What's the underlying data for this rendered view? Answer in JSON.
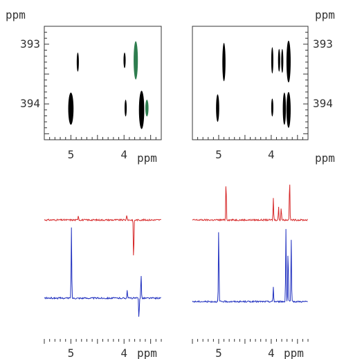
{
  "chart_data": [
    {
      "type": "contour-2d",
      "panel": "top-left",
      "y_unit": "ppm",
      "x_unit": "ppm",
      "x_ticks": [
        {
          "value": 5,
          "label": "5"
        },
        {
          "value": 4,
          "label": "4"
        }
      ],
      "y_ticks": [
        {
          "value": 393,
          "label": "393"
        },
        {
          "value": 394,
          "label": "394"
        }
      ],
      "x_range_ppm": [
        5.5,
        3.3
      ],
      "y_range_ppm": [
        392.7,
        394.6
      ],
      "peaks": [
        {
          "x": 5.0,
          "y": 394.08,
          "half_width_x": 0.05,
          "half_height_y": 0.27,
          "color": "#000000"
        },
        {
          "x": 4.87,
          "y": 393.3,
          "half_width_x": 0.02,
          "half_height_y": 0.16,
          "color": "#000000"
        },
        {
          "x": 3.99,
          "y": 393.27,
          "half_width_x": 0.02,
          "half_height_y": 0.13,
          "color": "#000000"
        },
        {
          "x": 3.97,
          "y": 394.07,
          "half_width_x": 0.02,
          "half_height_y": 0.14,
          "color": "#000000"
        },
        {
          "x": 3.78,
          "y": 393.27,
          "half_width_x": 0.04,
          "half_height_y": 0.32,
          "color": "#2e7d4f"
        },
        {
          "x": 3.67,
          "y": 394.1,
          "half_width_x": 0.05,
          "half_height_y": 0.32,
          "color": "#000000"
        },
        {
          "x": 3.57,
          "y": 394.07,
          "half_width_x": 0.03,
          "half_height_y": 0.14,
          "color": "#2e7d4f"
        }
      ]
    },
    {
      "type": "contour-2d",
      "panel": "top-right",
      "y_unit": "ppm",
      "x_unit": "ppm",
      "x_ticks": [
        {
          "value": 5,
          "label": "5"
        },
        {
          "value": 4,
          "label": "4"
        }
      ],
      "y_ticks": [
        {
          "value": 393,
          "label": "393"
        },
        {
          "value": 394,
          "label": "394"
        }
      ],
      "x_range_ppm": [
        5.5,
        3.3
      ],
      "y_range_ppm": [
        392.7,
        394.6
      ],
      "peaks": [
        {
          "x": 5.02,
          "y": 394.07,
          "half_width_x": 0.03,
          "half_height_y": 0.23,
          "color": "#000000"
        },
        {
          "x": 4.9,
          "y": 393.3,
          "half_width_x": 0.03,
          "half_height_y": 0.32,
          "color": "#000000"
        },
        {
          "x": 3.98,
          "y": 393.27,
          "half_width_x": 0.02,
          "half_height_y": 0.22,
          "color": "#000000"
        },
        {
          "x": 3.85,
          "y": 393.27,
          "half_width_x": 0.02,
          "half_height_y": 0.19,
          "color": "#000000"
        },
        {
          "x": 3.79,
          "y": 393.28,
          "half_width_x": 0.02,
          "half_height_y": 0.2,
          "color": "#000000"
        },
        {
          "x": 3.67,
          "y": 393.29,
          "half_width_x": 0.04,
          "half_height_y": 0.35,
          "color": "#000000"
        },
        {
          "x": 3.98,
          "y": 394.06,
          "half_width_x": 0.02,
          "half_height_y": 0.15,
          "color": "#000000"
        },
        {
          "x": 3.75,
          "y": 394.08,
          "half_width_x": 0.03,
          "half_height_y": 0.27,
          "color": "#000000"
        },
        {
          "x": 3.67,
          "y": 394.1,
          "half_width_x": 0.04,
          "half_height_y": 0.3,
          "color": "#000000"
        }
      ]
    },
    {
      "type": "line",
      "panel": "bottom-left",
      "x_unit": "ppm",
      "x_ticks": [
        {
          "value": 5,
          "label": "5"
        },
        {
          "value": 4,
          "label": "4"
        }
      ],
      "x_range_ppm": [
        5.5,
        3.3
      ],
      "series": [
        {
          "color": "#d62728",
          "peaks": [
            {
              "x": 4.86,
              "amplitude": 0.12
            },
            {
              "x": 3.95,
              "amplitude": 0.12
            },
            {
              "x": 3.82,
              "amplitude": 1.0,
              "sign": -1
            }
          ]
        },
        {
          "color": "#1f2fbf",
          "peaks": [
            {
              "x": 4.99,
              "amplitude": 1.0
            },
            {
              "x": 3.94,
              "amplitude": 0.12
            },
            {
              "x": 3.72,
              "amplitude": 0.3,
              "sign": -1
            },
            {
              "x": 3.68,
              "amplitude": 0.35
            }
          ]
        }
      ]
    },
    {
      "type": "line",
      "panel": "bottom-right",
      "x_unit": "ppm",
      "x_ticks": [
        {
          "value": 5,
          "label": "5"
        },
        {
          "value": 4,
          "label": "4"
        }
      ],
      "x_range_ppm": [
        5.5,
        3.3
      ],
      "series": [
        {
          "color": "#d62728",
          "peaks": [
            {
              "x": 4.86,
              "amplitude": 0.95
            },
            {
              "x": 3.96,
              "amplitude": 0.5
            },
            {
              "x": 3.86,
              "amplitude": 0.3
            },
            {
              "x": 3.81,
              "amplitude": 0.3
            },
            {
              "x": 3.65,
              "amplitude": 1.0
            }
          ]
        },
        {
          "color": "#1f2fbf",
          "peaks": [
            {
              "x": 5.0,
              "amplitude": 1.0
            },
            {
              "x": 3.96,
              "amplitude": 0.2
            },
            {
              "x": 3.72,
              "amplitude": 1.0
            },
            {
              "x": 3.68,
              "amplitude": 0.75
            },
            {
              "x": 3.62,
              "amplitude": 0.85
            }
          ]
        }
      ]
    }
  ]
}
